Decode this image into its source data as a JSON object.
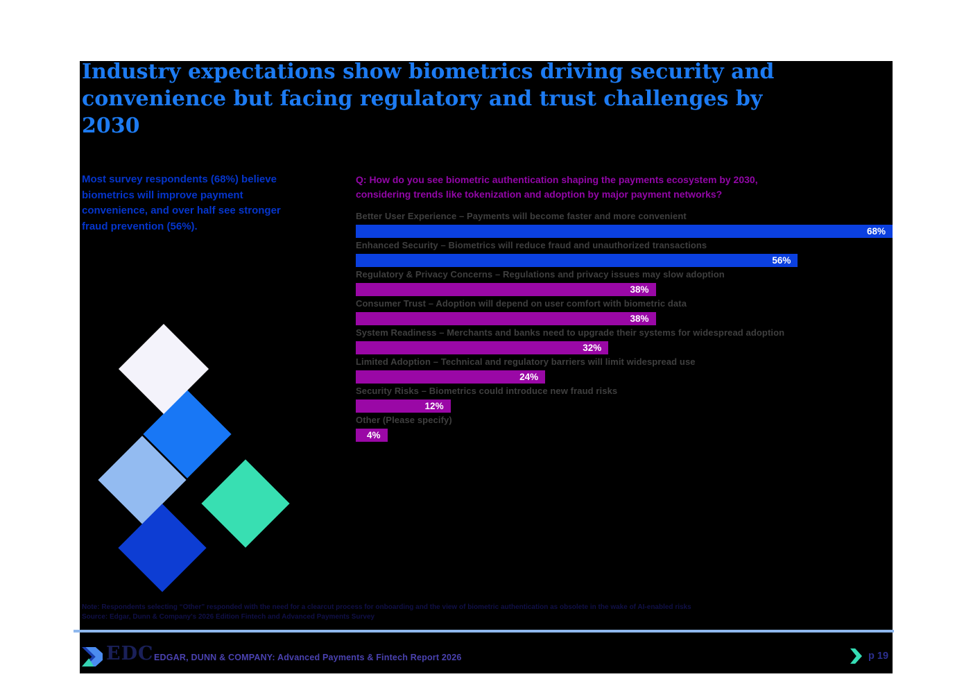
{
  "slide": {
    "title": "Industry expectations show biometrics driving security and\nconvenience but facing regulatory and trust challenges by 2030",
    "sidebar_text": "Most survey respondents (68%) believe\nbiometrics will improve payment\nconvenience, and over half see stronger\nfraud prevention (56%).",
    "note": "Note: Respondents selecting “Other” responded with the need for a clearcut process for onboarding and the view of biometric authentication as obsolete in the wake of AI-enabled risks",
    "source": "Source: Edgar, Dunn & Company's 2026 Edition Fintech and Advanced Payments Survey",
    "colors": {
      "title_blue": "#1d7bf2",
      "sidebar_blue": "#0535cc",
      "question_purple": "#9307a8",
      "bar_blue": "#0b40e0",
      "bar_magenta": "#9a08a6",
      "label_gray": "#3f3f3f",
      "note_navy": "#101047",
      "separator_blue": "#8fb8ed",
      "panel_black": "#000000",
      "page_white": "#ffffff"
    }
  },
  "chart_data": {
    "type": "bar",
    "orientation": "horizontal",
    "title": "Q: How do you see biometric authentication shaping the payments ecosystem by 2030,\nconsidering trends like tokenization and adoption by major payment networks?",
    "categories": [
      "Better User Experience – Payments will become faster and more convenient",
      "Enhanced Security – Biometrics will reduce fraud and unauthorized transactions",
      "Regulatory & Privacy Concerns – Regulations and privacy issues may slow adoption",
      "Consumer Trust – Adoption will depend on user comfort with biometric data",
      "System Readiness – Merchants and banks need to upgrade their systems for widespread adoption",
      "Limited Adoption – Technical and regulatory barriers will limit widespread use",
      "Security Risks – Biometrics could introduce new fraud risks",
      "Other (Please specify)"
    ],
    "values": [
      68,
      56,
      38,
      38,
      32,
      24,
      12,
      4
    ],
    "value_labels": [
      "68%",
      "56%",
      "38%",
      "38%",
      "32%",
      "24%",
      "12%",
      "4%"
    ],
    "bar_colors": [
      "#0b40e0",
      "#0b40e0",
      "#9a08a6",
      "#9a08a6",
      "#9a08a6",
      "#9a08a6",
      "#9a08a6",
      "#9a08a6"
    ],
    "xlim": [
      0,
      68
    ],
    "unit": "%",
    "grid": false,
    "legend": null
  },
  "decor": {
    "diamonds": [
      {
        "name": "lavender",
        "color": "#f4f3fb"
      },
      {
        "name": "azure",
        "color": "#1877f5"
      },
      {
        "name": "light-blue",
        "color": "#93bbf1"
      },
      {
        "name": "dark-blue",
        "color": "#0d3dd3"
      },
      {
        "name": "teal",
        "color": "#38dfb2"
      }
    ]
  },
  "footer": {
    "brand_mark": "EDC",
    "report_label": "EDGAR, DUNN & COMPANY: Advanced Payments & Fintech Report 2026",
    "page_label": "p 19",
    "brand_navy": "#1a2059",
    "report_label_color": "#4a42b0",
    "page_label_color": "#2c2f8f",
    "chevron_teal": "#35dcb4"
  }
}
